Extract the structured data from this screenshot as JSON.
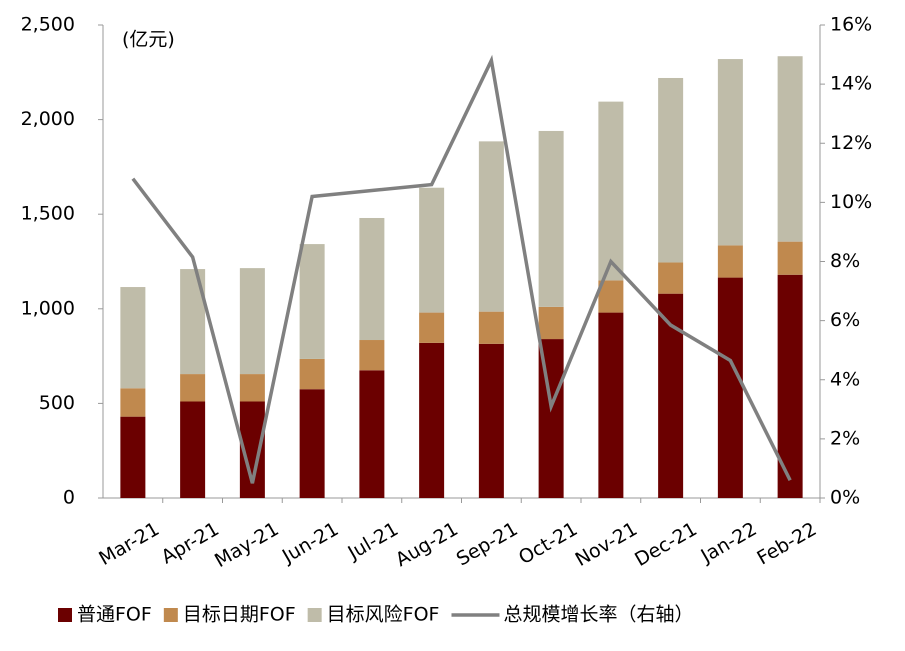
{
  "chart_data": {
    "type": "bar",
    "stacked": true,
    "unit_label": "(亿元)",
    "categories": [
      "Mar-21",
      "Apr-21",
      "May-21",
      "Jun-21",
      "Jul-21",
      "Aug-21",
      "Sep-21",
      "Oct-21",
      "Nov-21",
      "Dec-21",
      "Jan-22",
      "Feb-22"
    ],
    "series": [
      {
        "name": "普通FOF",
        "color": "#6b0000",
        "values": [
          430,
          510,
          510,
          575,
          675,
          820,
          815,
          840,
          980,
          1080,
          1165,
          1180
        ]
      },
      {
        "name": "目标日期FOF",
        "color": "#c0894e",
        "values": [
          150,
          145,
          145,
          160,
          160,
          160,
          170,
          170,
          170,
          165,
          170,
          175
        ]
      },
      {
        "name": "目标风险FOF",
        "color": "#bfbca9",
        "values": [
          535,
          555,
          560,
          607,
          645,
          660,
          900,
          930,
          945,
          975,
          985,
          980
        ]
      },
      {
        "name": "总规模增长率（右轴）",
        "color": "#808080",
        "type": "line",
        "axis": "y2",
        "values": [
          10.8,
          8.15,
          0.5,
          10.2,
          10.4,
          10.6,
          14.8,
          3.1,
          8.0,
          5.85,
          4.65,
          0.6
        ]
      }
    ],
    "ylim": [
      0,
      2500
    ],
    "yticks": [
      0,
      500,
      {
        "value": 1000,
        "label": "1,000"
      },
      {
        "value": 1500,
        "label": "1,500"
      },
      {
        "value": 2000,
        "label": "2,000"
      },
      {
        "value": 2500,
        "label": "2,500"
      }
    ],
    "y2lim": [
      0,
      16
    ],
    "y2ticks": [
      {
        "value": 0,
        "label": "0%"
      },
      {
        "value": 2,
        "label": "2%"
      },
      {
        "value": 4,
        "label": "4%"
      },
      {
        "value": 6,
        "label": "6%"
      },
      {
        "value": 8,
        "label": "8%"
      },
      {
        "value": 10,
        "label": "10%"
      },
      {
        "value": 12,
        "label": "12%"
      },
      {
        "value": 14,
        "label": "14%"
      },
      {
        "value": 16,
        "label": "16%"
      }
    ],
    "grid": false,
    "legend": "bottom"
  }
}
